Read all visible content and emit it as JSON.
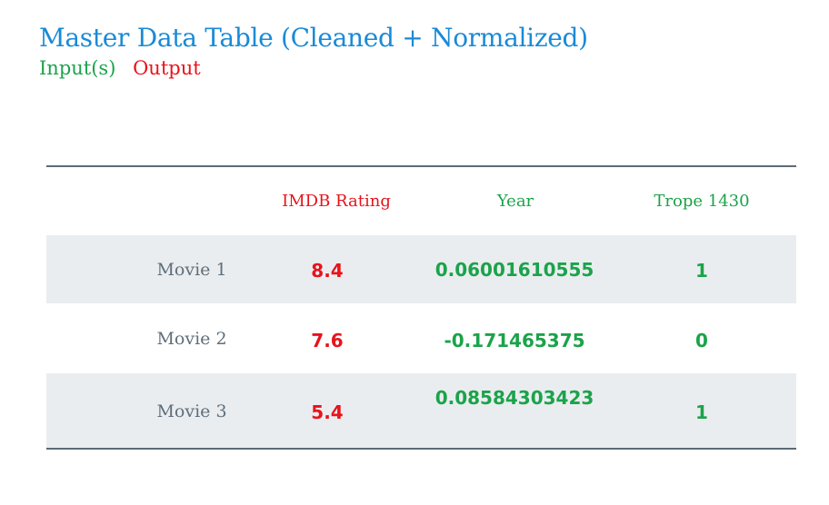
{
  "header": {
    "title": "Master Data Table (Cleaned + Normalized)",
    "legend_input": "Input(s)",
    "legend_output": "Output"
  },
  "colors": {
    "title": "#1a8ad6",
    "input": "#1ba34a",
    "output": "#e8131b",
    "row_label": "#5f6f7a",
    "stripe": "#eaedf0",
    "rule": "#5c6b76"
  },
  "table": {
    "columns": [
      "",
      "IMDB Rating",
      "Year",
      "Trope 1430"
    ],
    "rows": [
      {
        "name": "Movie 1",
        "imdb": "8.4",
        "year": "0.06001610555",
        "trope": "1"
      },
      {
        "name": "Movie 2",
        "imdb": "7.6",
        "year": "-0.171465375",
        "trope": "0"
      },
      {
        "name": "Movie 3",
        "imdb": "5.4",
        "year": "0.08584303423",
        "trope": "1"
      }
    ]
  }
}
